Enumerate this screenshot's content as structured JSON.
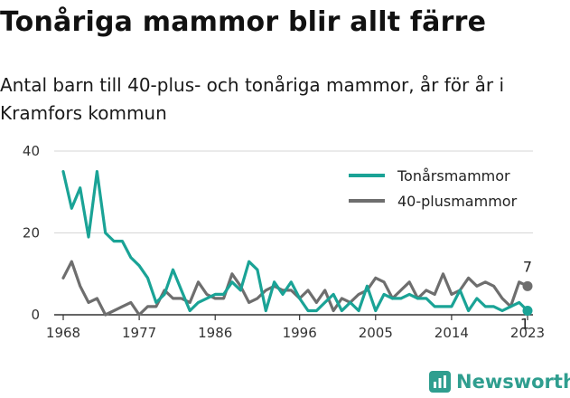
{
  "title": "Tonåriga mammor blir allt färre",
  "subtitle": "Antal barn till 40-plus- och tonåriga mammor, år för år i Kramfors kommun",
  "brand": "Newsworthy",
  "colors": {
    "teen": "#1aa396",
    "forty": "#6e6e6e",
    "brand": "#2f9e8f",
    "grid": "#d6d6d6"
  },
  "chart_data": {
    "type": "line",
    "x": [
      1968,
      1969,
      1970,
      1971,
      1972,
      1973,
      1974,
      1975,
      1976,
      1977,
      1978,
      1979,
      1980,
      1981,
      1982,
      1983,
      1984,
      1985,
      1986,
      1987,
      1988,
      1989,
      1990,
      1991,
      1992,
      1993,
      1994,
      1995,
      1996,
      1997,
      1998,
      1999,
      2000,
      2001,
      2002,
      2003,
      2004,
      2005,
      2006,
      2007,
      2008,
      2009,
      2010,
      2011,
      2012,
      2013,
      2014,
      2015,
      2016,
      2017,
      2018,
      2019,
      2020,
      2021,
      2022,
      2023
    ],
    "series": [
      {
        "name": "Tonårsmammor",
        "color": "#1aa396",
        "values": [
          35,
          26,
          31,
          19,
          35,
          20,
          18,
          18,
          14,
          12,
          9,
          3,
          5,
          11,
          6,
          1,
          3,
          4,
          5,
          5,
          8,
          6,
          13,
          11,
          1,
          8,
          5,
          8,
          4,
          1,
          1,
          3,
          5,
          1,
          3,
          1,
          7,
          1,
          5,
          4,
          4,
          5,
          4,
          4,
          2,
          2,
          2,
          6,
          1,
          4,
          2,
          2,
          1,
          2,
          3,
          1
        ]
      },
      {
        "name": "40-plusmammor",
        "color": "#6e6e6e",
        "values": [
          9,
          13,
          7,
          3,
          4,
          0,
          1,
          2,
          3,
          0,
          2,
          2,
          6,
          4,
          4,
          3,
          8,
          5,
          4,
          4,
          10,
          7,
          3,
          4,
          6,
          7,
          6,
          6,
          4,
          6,
          3,
          6,
          1,
          4,
          3,
          5,
          6,
          9,
          8,
          4,
          6,
          8,
          4,
          6,
          5,
          10,
          5,
          6,
          9,
          7,
          8,
          7,
          4,
          2,
          8,
          7
        ]
      }
    ],
    "xticks": [
      "1968",
      "1977",
      "1986",
      "1996",
      "2005",
      "2014",
      "2023"
    ],
    "yticks": [
      "0",
      "20",
      "40"
    ],
    "ylim": [
      0,
      40
    ],
    "end_labels": {
      "teen": "1",
      "forty": "7"
    },
    "legend_position": "top-right",
    "grid": true
  }
}
